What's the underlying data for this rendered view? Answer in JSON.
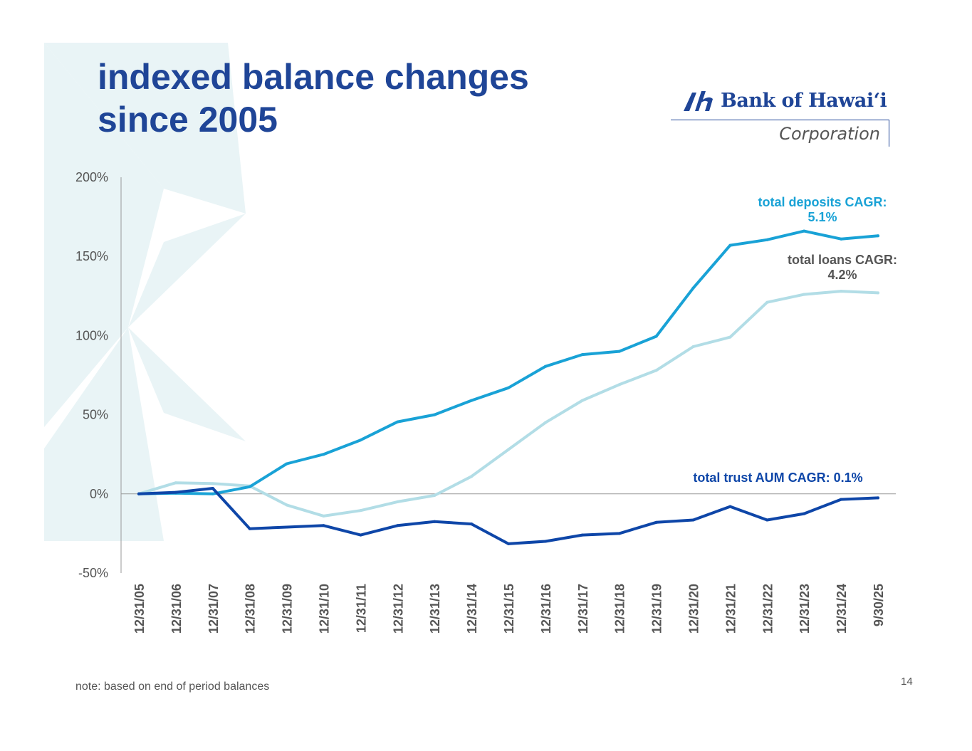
{
  "title": {
    "line1": "indexed balance changes",
    "line2": "since 2005"
  },
  "logo": {
    "name": "Bank of Hawaiʻi",
    "sub": "Corporation",
    "mark": "logo-mark-icon"
  },
  "colors": {
    "title": "#1f4597",
    "deposits": "#19a2d6",
    "loans": "#b2dde6",
    "trust": "#0e46a8",
    "axis": "#999999",
    "text": "#555555"
  },
  "annotations": {
    "deposits_label": "total deposits CAGR:",
    "deposits_value": "5.1%",
    "loans_label": "total loans CAGR:",
    "loans_value": "4.2%",
    "trust": "total trust AUM CAGR: 0.1%"
  },
  "footnote": "note: based on end of period balances",
  "page_number": "14",
  "chart_data": {
    "type": "line",
    "title": "indexed balance changes since 2005",
    "xlabel": "",
    "ylabel": "",
    "ylim": [
      -50,
      200
    ],
    "yticks": [
      200,
      150,
      100,
      50,
      0,
      -50
    ],
    "ytick_labels": [
      "200%",
      "150%",
      "100%",
      "50%",
      "0%",
      "-50%"
    ],
    "categories": [
      "12/31/05",
      "12/31/06",
      "12/31/07",
      "12/31/08",
      "12/31/09",
      "12/31/10",
      "12/31/11",
      "12/31/12",
      "12/31/13",
      "12/31/14",
      "12/31/15",
      "12/31/16",
      "12/31/17",
      "12/31/18",
      "12/31/19",
      "12/31/20",
      "12/31/21",
      "12/31/22",
      "12/31/23",
      "12/31/24",
      "9/30/25"
    ],
    "series": [
      {
        "name": "total loans",
        "color": "#b2dde6",
        "values": [
          0,
          7,
          6.5,
          5,
          -7,
          -14,
          -10.5,
          -5,
          -1,
          11,
          28,
          45,
          59,
          69,
          78,
          93,
          99,
          121,
          126,
          128,
          127
        ]
      },
      {
        "name": "total deposits",
        "color": "#19a2d6",
        "values": [
          0,
          0.5,
          0,
          4.5,
          19,
          25,
          34,
          45.5,
          50,
          59,
          67,
          80.5,
          88,
          90,
          99.5,
          130,
          157,
          160.5,
          166,
          161,
          163
        ]
      },
      {
        "name": "total trust AUM",
        "color": "#0e46a8",
        "values": [
          0,
          1,
          3.5,
          -22,
          -21,
          -20,
          -26,
          -20,
          -17.5,
          -19,
          -31.5,
          -30,
          -26,
          -25,
          -18,
          -16.5,
          -8,
          -16.5,
          -12.5,
          -3.5,
          -2.5
        ]
      }
    ],
    "legend": "none"
  }
}
